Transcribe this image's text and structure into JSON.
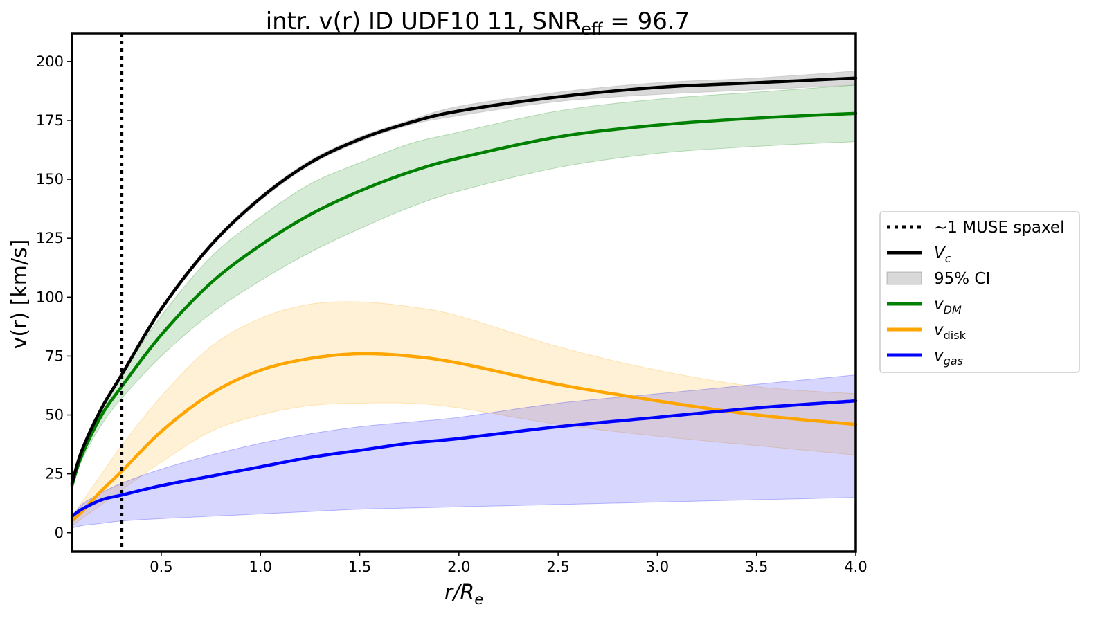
{
  "chart_data": {
    "type": "line",
    "title": {
      "main": "intr. v(r) ID UDF10 11, SNR",
      "sub": "eff",
      "tail": " = 96.7"
    },
    "xlabel": {
      "main": "r/R",
      "sub": "e"
    },
    "ylabel": "v(r) [km/s]",
    "xlim": [
      0.05,
      4.0
    ],
    "ylim": [
      -8,
      212
    ],
    "xticks": [
      0.5,
      1.0,
      1.5,
      2.0,
      2.5,
      3.0,
      3.5,
      4.0
    ],
    "xtick_labels": [
      "0.5",
      "1.0",
      "1.5",
      "2.0",
      "2.5",
      "3.0",
      "3.5",
      "4.0"
    ],
    "yticks": [
      0,
      25,
      50,
      75,
      100,
      125,
      150,
      175,
      200
    ],
    "ytick_labels": [
      "0",
      "25",
      "50",
      "75",
      "100",
      "125",
      "150",
      "175",
      "200"
    ],
    "grid": false,
    "legend_position": "outside-right",
    "vline": {
      "x": 0.3,
      "label": "~1 MUSE spaxel",
      "color": "#000000",
      "style": "dotted"
    },
    "x": [
      0.05,
      0.1,
      0.2,
      0.3,
      0.5,
      0.75,
      1.0,
      1.25,
      1.5,
      1.75,
      2.0,
      2.5,
      3.0,
      3.5,
      4.0
    ],
    "series": [
      {
        "name": "V",
        "name_sub": "c",
        "color": "#000000",
        "values": [
          21,
          35,
          53,
          67,
          95,
          122,
          142,
          157,
          167,
          174,
          179,
          185,
          189,
          191,
          193
        ],
        "band_lower": [
          20,
          34,
          52,
          66,
          94,
          121,
          141,
          156,
          166,
          173,
          177,
          183,
          186,
          188,
          190
        ],
        "band_upper": [
          22,
          36,
          54,
          68,
          96,
          123,
          143,
          158,
          168,
          175,
          181,
          187,
          191,
          193,
          196
        ],
        "band_color": "#808080",
        "band_opacity": 0.3
      },
      {
        "name": "v",
        "name_sub": "DM",
        "color": "#008000",
        "values": [
          20,
          33,
          50,
          62,
          84,
          106,
          122,
          135,
          145,
          153,
          159,
          168,
          173,
          176,
          178
        ],
        "band_lower": [
          19,
          31,
          46,
          57,
          75,
          93,
          107,
          119,
          129,
          138,
          145,
          155,
          161,
          164,
          166
        ],
        "band_upper": [
          22,
          36,
          54,
          67,
          92,
          117,
          134,
          148,
          157,
          165,
          170,
          179,
          184,
          187,
          190
        ],
        "band_color": "#008000",
        "band_opacity": 0.16
      },
      {
        "name": "v",
        "name_sub": "disk",
        "color": "#FFA500",
        "values": [
          5,
          9,
          18,
          26,
          43,
          59,
          69,
          74,
          76,
          75,
          72,
          63,
          56,
          50,
          46
        ],
        "band_lower": [
          3,
          6,
          12,
          18,
          30,
          43,
          50,
          54,
          55,
          55,
          53,
          46,
          41,
          37,
          33
        ],
        "band_upper": [
          7,
          13,
          25,
          37,
          58,
          79,
          91,
          97,
          98,
          96,
          92,
          79,
          69,
          62,
          59
        ],
        "band_color": "#FFA500",
        "band_opacity": 0.16
      },
      {
        "name": "v",
        "name_sub": "gas",
        "color": "#0000FF",
        "values": [
          7,
          10,
          14,
          16,
          20,
          24,
          28,
          32,
          35,
          38,
          40,
          45,
          49,
          53,
          56
        ],
        "band_lower": [
          2,
          3,
          4,
          5,
          6,
          7,
          8,
          9,
          10,
          10.5,
          11,
          12,
          13,
          14,
          15
        ],
        "band_upper": [
          6,
          12,
          17,
          21,
          27,
          33,
          38,
          42,
          45,
          47,
          49,
          55,
          59,
          63,
          67
        ],
        "band_color": "#0000FF",
        "band_opacity": 0.16
      }
    ],
    "legend": [
      {
        "kind": "dotted-line",
        "color": "#000000",
        "label": "~1 MUSE spaxel"
      },
      {
        "kind": "line",
        "color": "#000000",
        "label": "V",
        "sub": "c"
      },
      {
        "kind": "patch",
        "color": "#808080",
        "label": "95% CI"
      },
      {
        "kind": "line",
        "color": "#008000",
        "label": "v",
        "sub": "DM"
      },
      {
        "kind": "line",
        "color": "#FFA500",
        "label": "v",
        "sub": "disk"
      },
      {
        "kind": "line",
        "color": "#0000FF",
        "label": "v",
        "sub": "gas"
      }
    ]
  }
}
